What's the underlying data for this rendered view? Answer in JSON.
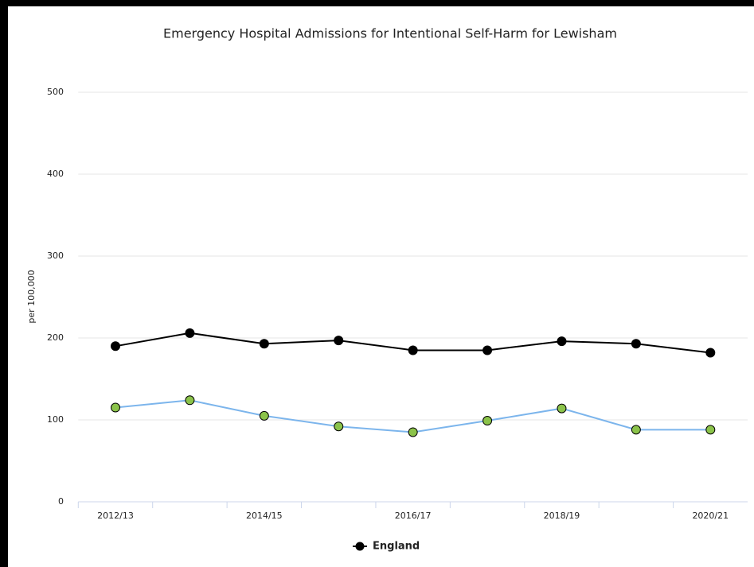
{
  "chart_data": {
    "type": "line",
    "title": "Emergency Hospital Admissions for Intentional Self-Harm for Lewisham",
    "y_label": "per 100,000",
    "categories": [
      "2012/13",
      null,
      "2014/15",
      null,
      "2016/17",
      null,
      "2018/19",
      null,
      "2020/21"
    ],
    "series": [
      {
        "name": "England",
        "color": "#000000",
        "marker_color": "#000000",
        "values": [
          190,
          206,
          193,
          197,
          185,
          185,
          196,
          193,
          182
        ]
      },
      {
        "color": "#7cb5ec",
        "marker_color": "#8bc34a",
        "values": [
          115,
          124,
          105,
          92,
          85,
          99,
          114,
          88,
          88
        ]
      }
    ],
    "ylim": [
      0,
      500
    ],
    "yticks": [
      0,
      100,
      200,
      300,
      400,
      500
    ],
    "grid": true,
    "legend": "bottom"
  }
}
